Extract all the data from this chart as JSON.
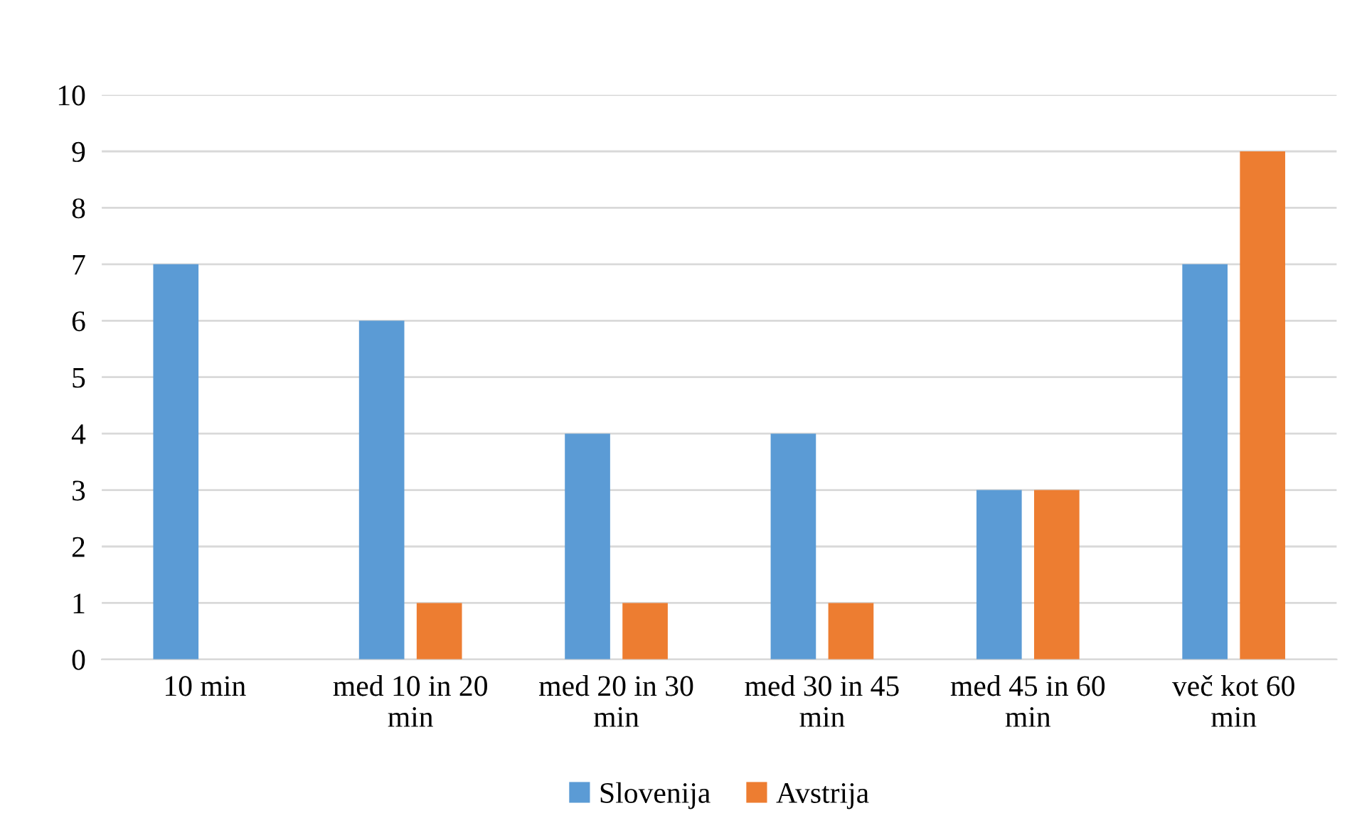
{
  "chart_data": {
    "type": "bar",
    "categories": [
      "10 min",
      "med 10 in 20\nmin",
      "med 20 in 30\nmin",
      "med 30 in 45\nmin",
      "med 45 in 60\nmin",
      "več kot 60\nmin"
    ],
    "series": [
      {
        "name": "Slovenija",
        "color": "#5b9bd5",
        "values": [
          7,
          6,
          4,
          4,
          3,
          7
        ]
      },
      {
        "name": "Avstrija",
        "color": "#ed7d31",
        "values": [
          0,
          1,
          1,
          1,
          3,
          9
        ]
      }
    ],
    "ylim": [
      0,
      10
    ],
    "yticks": [
      0,
      1,
      2,
      3,
      4,
      5,
      6,
      7,
      8,
      9,
      10
    ],
    "grid": "y",
    "legend": "bottom"
  }
}
